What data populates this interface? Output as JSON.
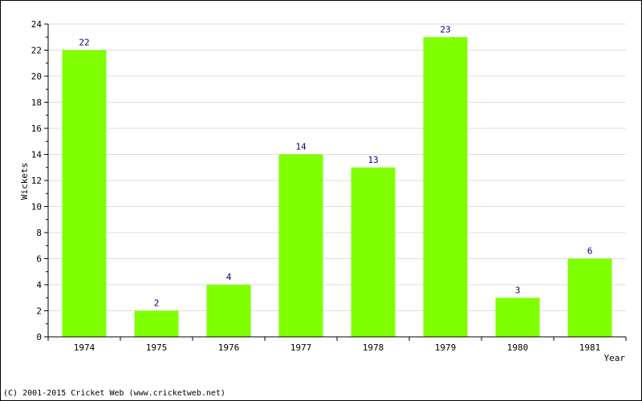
{
  "chart_data": {
    "type": "bar",
    "categories": [
      "1974",
      "1975",
      "1976",
      "1977",
      "1978",
      "1979",
      "1980",
      "1981"
    ],
    "values": [
      22,
      2,
      4,
      14,
      13,
      23,
      3,
      6
    ],
    "data_labels": [
      "22",
      "2",
      "4",
      "14",
      "13",
      "23",
      "3",
      "6"
    ],
    "title": "",
    "xlabel": "Year",
    "ylabel": "Wickets",
    "ylim": [
      0,
      24
    ],
    "yticks": [
      0,
      2,
      4,
      6,
      8,
      10,
      12,
      14,
      16,
      18,
      20,
      22,
      24
    ],
    "grid": true,
    "bar_color": "#7fff00",
    "label_color": "#000080"
  },
  "footer": {
    "copyright": "(C) 2001-2015 Cricket Web (www.cricketweb.net)"
  }
}
